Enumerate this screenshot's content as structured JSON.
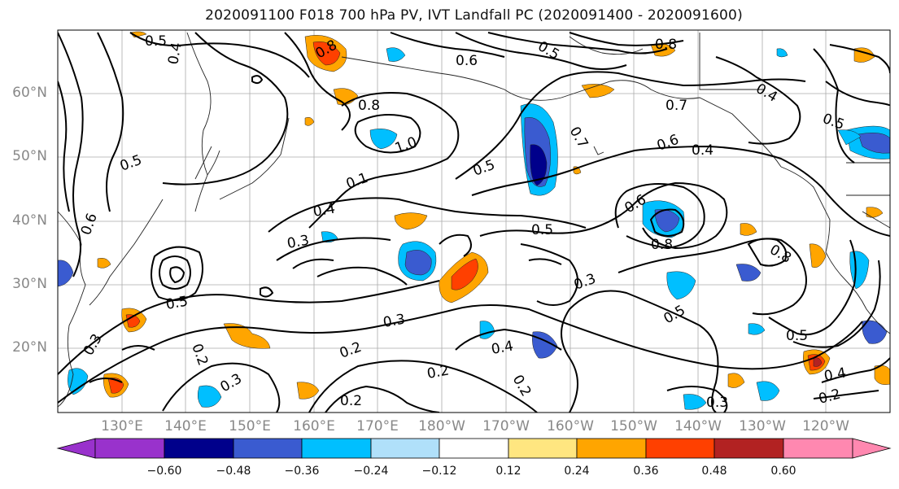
{
  "title": "2020091100 F018 700 hPa PV, IVT Landfall PC (2020091400 - 2020091600)",
  "lat_labels": [
    "60°N",
    "50°N",
    "40°N",
    "30°N",
    "20°N"
  ],
  "lon_labels": [
    "130°E",
    "140°E",
    "150°E",
    "160°E",
    "170°E",
    "180°W",
    "170°W",
    "160°W",
    "150°W",
    "140°W",
    "130°W",
    "120°W"
  ],
  "contour_labels": [
    "0.5",
    "0.4",
    "0.8",
    "0.6",
    "0.8",
    "0.5",
    "0.7",
    "0.8",
    "0.7",
    "0.6",
    "0.4",
    "0.5",
    "1.0",
    "0.8",
    "0.5",
    "0.1",
    "0.4",
    "0.3",
    "0.5",
    "0.6",
    "0.8",
    "0.3",
    "0.3",
    "0.5",
    "0.3",
    "0.2",
    "0.4",
    "0.2",
    "0.2",
    "0.3",
    "0.2",
    "0.5",
    "0.4",
    "0.2",
    "0.3",
    "0.4",
    "0.2",
    "0.5",
    "0.6",
    "0.5"
  ],
  "colorbar": {
    "ticks": [
      "−0.60",
      "−0.48",
      "−0.36",
      "−0.24",
      "−0.12",
      "0.12",
      "0.24",
      "0.36",
      "0.48",
      "0.60"
    ],
    "colors": [
      "#9932cc",
      "#00008b",
      "#3a5bd0",
      "#00bfff",
      "#b0e0fa",
      "#ffffff",
      "#ffe680",
      "#ffa500",
      "#ff4000",
      "#b22222",
      "#ff88b0"
    ]
  },
  "map_extent": {
    "lon_min_E": 120,
    "lon_max_E": 250,
    "lat_min": 10,
    "lat_max": 70
  }
}
